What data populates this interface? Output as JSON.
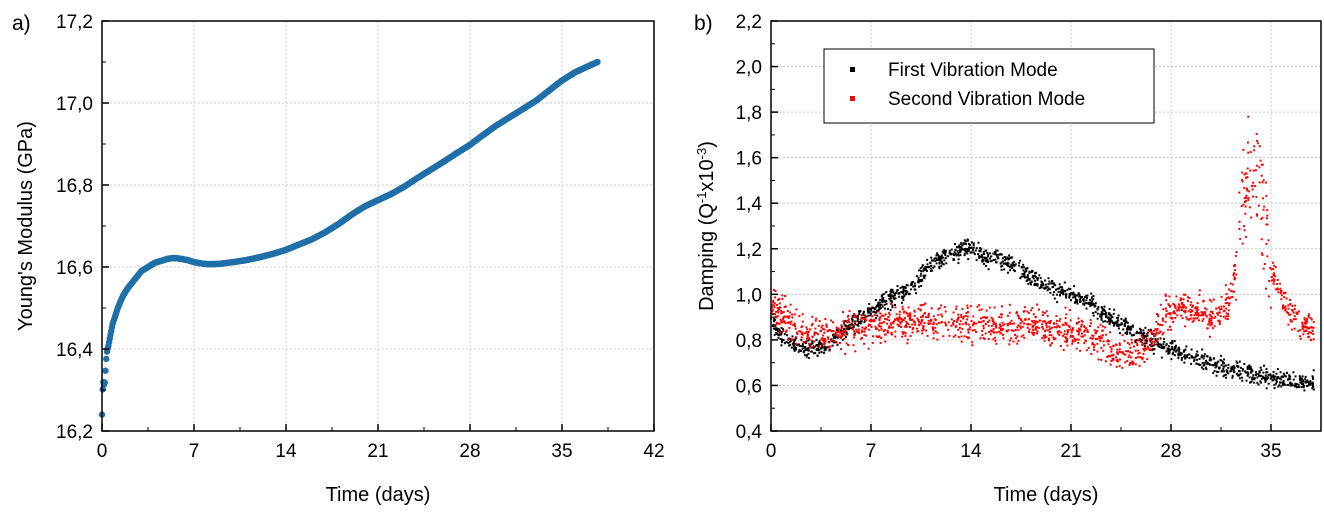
{
  "panels": {
    "a_label": "a)",
    "b_label": "b)"
  },
  "chart_data": [
    {
      "type": "scatter",
      "panel": "a)",
      "xlabel": "Time (days)",
      "ylabel": "Young's Modulus (GPa)",
      "xlim": [
        0,
        42
      ],
      "ylim": [
        16.2,
        17.2
      ],
      "x_ticks": [
        0,
        7,
        14,
        21,
        28,
        35,
        42
      ],
      "x_tick_labels": [
        "0",
        "7",
        "14",
        "21",
        "28",
        "35",
        "42"
      ],
      "y_ticks": [
        16.2,
        16.4,
        16.6,
        16.8,
        17.0,
        17.2
      ],
      "y_tick_labels": [
        "16,2",
        "16,4",
        "16,6",
        "16,8",
        "17,0",
        "17,2"
      ],
      "grid": true,
      "series": [
        {
          "color": "#1f6fa8",
          "points": [
            [
              0.0,
              16.24
            ],
            [
              0.05,
              16.3
            ],
            [
              0.1,
              16.32
            ],
            [
              0.2,
              16.31
            ],
            [
              0.35,
              16.39
            ],
            [
              0.5,
              16.41
            ],
            [
              0.8,
              16.46
            ],
            [
              1.2,
              16.5
            ],
            [
              1.6,
              16.53
            ],
            [
              2.0,
              16.55
            ],
            [
              2.5,
              16.57
            ],
            [
              3.0,
              16.59
            ],
            [
              3.5,
              16.6
            ],
            [
              4.0,
              16.61
            ],
            [
              4.5,
              16.615
            ],
            [
              5.0,
              16.62
            ],
            [
              5.5,
              16.622
            ],
            [
              6.0,
              16.62
            ],
            [
              6.5,
              16.617
            ],
            [
              7.0,
              16.612
            ],
            [
              7.5,
              16.609
            ],
            [
              8.0,
              16.607
            ],
            [
              8.5,
              16.607
            ],
            [
              9.0,
              16.608
            ],
            [
              10.0,
              16.612
            ],
            [
              11.0,
              16.617
            ],
            [
              12.0,
              16.624
            ],
            [
              13.0,
              16.632
            ],
            [
              14.0,
              16.642
            ],
            [
              15.0,
              16.655
            ],
            [
              16.0,
              16.668
            ],
            [
              17.0,
              16.685
            ],
            [
              18.0,
              16.705
            ],
            [
              19.0,
              16.728
            ],
            [
              20.0,
              16.748
            ],
            [
              21.0,
              16.763
            ],
            [
              22.0,
              16.778
            ],
            [
              23.0,
              16.796
            ],
            [
              24.0,
              16.817
            ],
            [
              25.0,
              16.837
            ],
            [
              26.0,
              16.857
            ],
            [
              27.0,
              16.878
            ],
            [
              28.0,
              16.898
            ],
            [
              29.0,
              16.922
            ],
            [
              30.0,
              16.945
            ],
            [
              31.0,
              16.965
            ],
            [
              32.0,
              16.985
            ],
            [
              33.0,
              17.005
            ],
            [
              34.0,
              17.03
            ],
            [
              35.0,
              17.055
            ],
            [
              36.0,
              17.075
            ],
            [
              37.0,
              17.09
            ],
            [
              37.7,
              17.1
            ]
          ]
        }
      ]
    },
    {
      "type": "scatter",
      "panel": "b)",
      "xlabel": "Time (days)",
      "ylabel_parts": [
        "Damping (Q",
        "-1",
        "x10",
        "-3",
        ")"
      ],
      "xlim": [
        0,
        38.5
      ],
      "ylim": [
        0.4,
        2.2
      ],
      "x_ticks": [
        0,
        7,
        14,
        21,
        28,
        35
      ],
      "x_tick_labels": [
        "0",
        "7",
        "14",
        "21",
        "28",
        "35"
      ],
      "y_ticks": [
        0.4,
        0.6,
        0.8,
        1.0,
        1.2,
        1.4,
        1.6,
        1.8,
        2.0,
        2.2
      ],
      "y_tick_labels": [
        "0,4",
        "0,6",
        "0,8",
        "1,0",
        "1,2",
        "1,4",
        "1,6",
        "1,8",
        "2,0",
        "2,2"
      ],
      "grid": true,
      "legend_position": "top-left",
      "series": [
        {
          "name": "First Vibration Mode",
          "color": "#000000",
          "points": [
            [
              0,
              0.9
            ],
            [
              0.5,
              0.83
            ],
            [
              1,
              0.8
            ],
            [
              2,
              0.77
            ],
            [
              3,
              0.76
            ],
            [
              4,
              0.78
            ],
            [
              5,
              0.83
            ],
            [
              6,
              0.88
            ],
            [
              7,
              0.93
            ],
            [
              8,
              0.97
            ],
            [
              9,
              1.0
            ],
            [
              10,
              1.03
            ],
            [
              11,
              1.12
            ],
            [
              12,
              1.16
            ],
            [
              13,
              1.19
            ],
            [
              14,
              1.21
            ],
            [
              14.5,
              1.18
            ],
            [
              15,
              1.16
            ],
            [
              16,
              1.15
            ],
            [
              17,
              1.13
            ],
            [
              18,
              1.09
            ],
            [
              19,
              1.05
            ],
            [
              20,
              1.02
            ],
            [
              21,
              1.0
            ],
            [
              22,
              0.97
            ],
            [
              23,
              0.93
            ],
            [
              24,
              0.89
            ],
            [
              25,
              0.85
            ],
            [
              26,
              0.82
            ],
            [
              27,
              0.78
            ],
            [
              28,
              0.76
            ],
            [
              29,
              0.73
            ],
            [
              30,
              0.71
            ],
            [
              31,
              0.69
            ],
            [
              32,
              0.67
            ],
            [
              33,
              0.66
            ],
            [
              34,
              0.645
            ],
            [
              35,
              0.635
            ],
            [
              36,
              0.625
            ],
            [
              37,
              0.615
            ],
            [
              38,
              0.615
            ]
          ]
        },
        {
          "name": "Second Vibration Mode",
          "color": "#ff0000",
          "points": [
            [
              0,
              0.95
            ],
            [
              1,
              0.9
            ],
            [
              2,
              0.85
            ],
            [
              3,
              0.83
            ],
            [
              4,
              0.82
            ],
            [
              5,
              0.83
            ],
            [
              6,
              0.85
            ],
            [
              7,
              0.86
            ],
            [
              8,
              0.87
            ],
            [
              9,
              0.875
            ],
            [
              10,
              0.88
            ],
            [
              11,
              0.88
            ],
            [
              12,
              0.875
            ],
            [
              13,
              0.875
            ],
            [
              14,
              0.87
            ],
            [
              15,
              0.87
            ],
            [
              16,
              0.87
            ],
            [
              17,
              0.87
            ],
            [
              18,
              0.865
            ],
            [
              19,
              0.86
            ],
            [
              20,
              0.85
            ],
            [
              21,
              0.84
            ],
            [
              22,
              0.82
            ],
            [
              23,
              0.79
            ],
            [
              24,
              0.75
            ],
            [
              25,
              0.73
            ],
            [
              26,
              0.76
            ],
            [
              27,
              0.83
            ],
            [
              27.5,
              0.9
            ],
            [
              28,
              0.93
            ],
            [
              29,
              0.94
            ],
            [
              30,
              0.92
            ],
            [
              31,
              0.9
            ],
            [
              32,
              0.95
            ],
            [
              32.5,
              1.1
            ],
            [
              33,
              1.35
            ],
            [
              33.5,
              1.55
            ],
            [
              34,
              1.52
            ],
            [
              34.5,
              1.3
            ],
            [
              35,
              1.1
            ],
            [
              36,
              0.95
            ],
            [
              37,
              0.88
            ],
            [
              38,
              0.86
            ]
          ]
        }
      ]
    }
  ]
}
